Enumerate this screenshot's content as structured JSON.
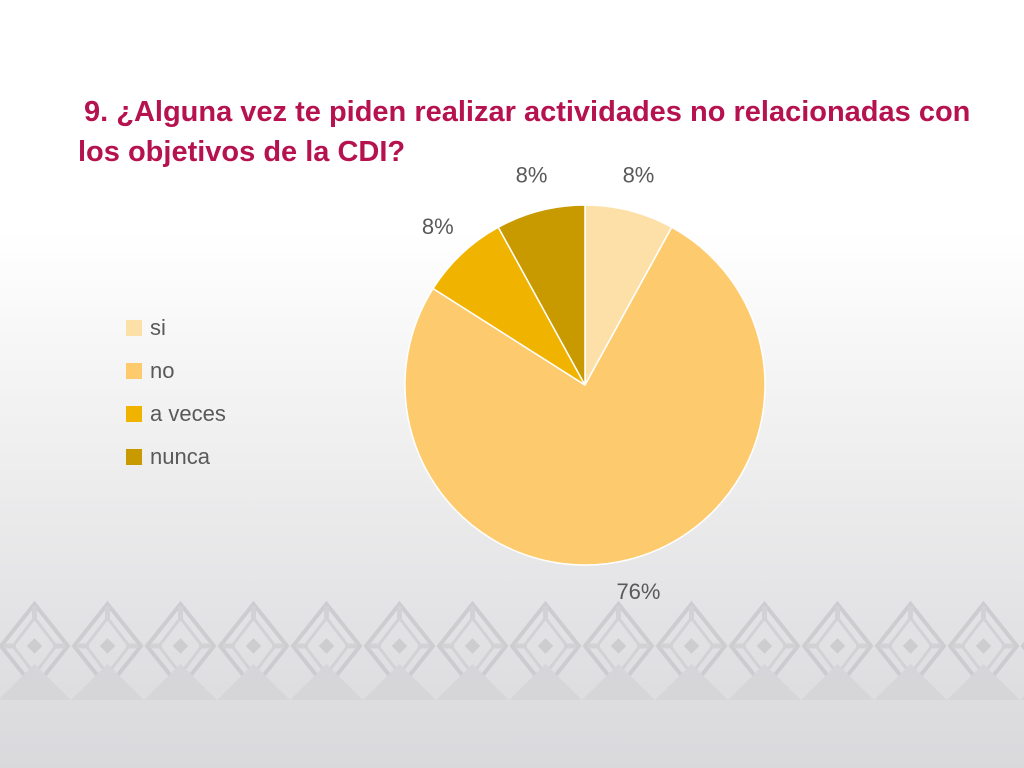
{
  "title": "9. ¿Alguna vez te piden realizar actividades no relacionadas con los objetivos de la CDI?",
  "chart_data": {
    "type": "pie",
    "title": "9. ¿Alguna vez te piden realizar actividades no relacionadas con los objetivos de la CDI?",
    "categories": [
      "si",
      "no",
      "a veces",
      "nunca"
    ],
    "values": [
      8,
      76,
      8,
      8
    ],
    "data_labels": [
      "8%",
      "76%",
      "8%",
      "8%"
    ],
    "colors": [
      "#fde0a8",
      "#fdcb6e",
      "#f0b400",
      "#c99a00"
    ],
    "start_angle_deg": 0,
    "direction": "clockwise",
    "legend_position": "left"
  },
  "colors": {
    "title": "#b5124f",
    "label_text": "#595959",
    "pattern": "#c9c9cd"
  }
}
